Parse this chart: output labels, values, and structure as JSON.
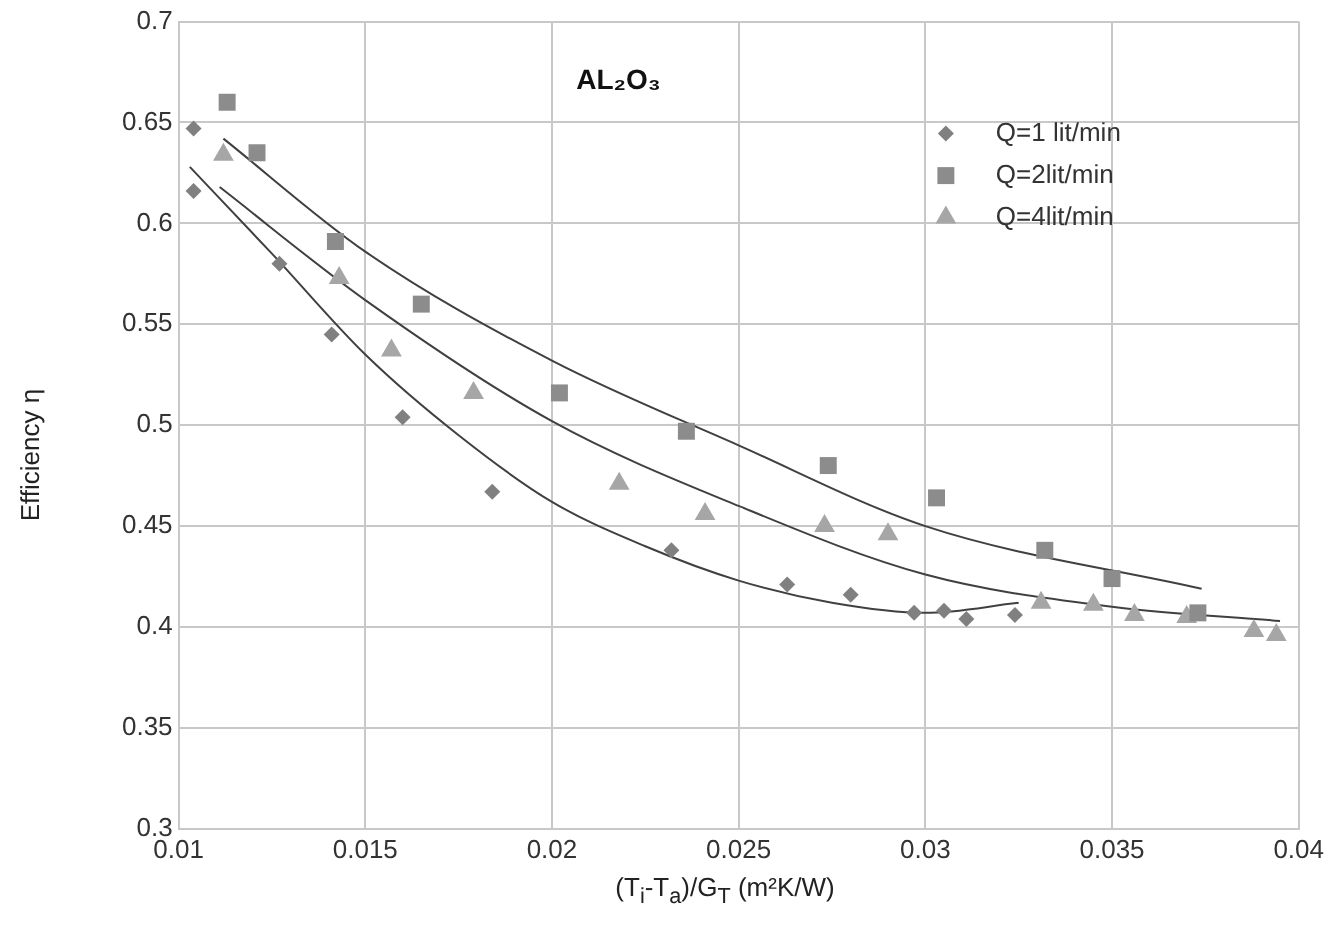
{
  "chart_data": {
    "type": "scatter",
    "annotations": [
      "AL₂O₃"
    ],
    "xlabel": "(T$_{i}$-T$_{a}$)/G$_{T}$    (m²K/W)",
    "ylabel": "Efficiency  η",
    "xlim": [
      0.01,
      0.04
    ],
    "xticks": [
      0.01,
      0.015,
      0.02,
      0.025,
      0.03,
      0.035,
      0.04
    ],
    "ylim": [
      0.3,
      0.7
    ],
    "yticks": [
      0.3,
      0.35,
      0.4,
      0.45,
      0.5,
      0.55,
      0.6,
      0.65,
      0.7
    ],
    "grid": true,
    "legend": "top right",
    "series": [
      {
        "name": "Q=1 lit/min",
        "marker": "diamond",
        "color": "#808080",
        "x": [
          0.0104,
          0.0104,
          0.0127,
          0.0141,
          0.016,
          0.0184,
          0.0232,
          0.0263,
          0.028,
          0.0297,
          0.0305,
          0.0311,
          0.0324
        ],
        "values": [
          0.647,
          0.616,
          0.58,
          0.545,
          0.504,
          0.467,
          0.438,
          0.421,
          0.416,
          0.407,
          0.408,
          0.404,
          0.406
        ]
      },
      {
        "name": "Q=2lit/min",
        "marker": "square",
        "color": "#8c8c8c",
        "x": [
          0.0113,
          0.0121,
          0.0142,
          0.0165,
          0.0202,
          0.0236,
          0.0274,
          0.0303,
          0.0332,
          0.035,
          0.0373
        ],
        "values": [
          0.66,
          0.635,
          0.591,
          0.56,
          0.516,
          0.497,
          0.48,
          0.464,
          0.438,
          0.424,
          0.407
        ]
      },
      {
        "name": "Q=4lit/min",
        "marker": "triangle",
        "color": "#a6a6a6",
        "x": [
          0.0112,
          0.0143,
          0.0157,
          0.0179,
          0.0218,
          0.0241,
          0.0273,
          0.029,
          0.0331,
          0.0345,
          0.0356,
          0.037,
          0.0388,
          0.0394
        ],
        "values": [
          0.634,
          0.573,
          0.537,
          0.516,
          0.471,
          0.456,
          0.45,
          0.446,
          0.412,
          0.411,
          0.406,
          0.405,
          0.398,
          0.396
        ]
      },
      {
        "type": "line",
        "marker": "none",
        "color": "#404040",
        "x": [
          0.0103,
          0.0125,
          0.015,
          0.0175,
          0.02,
          0.0225,
          0.025,
          0.0275,
          0.03,
          0.0325
        ],
        "values": [
          0.628,
          0.585,
          0.535,
          0.495,
          0.462,
          0.44,
          0.423,
          0.412,
          0.407,
          0.412
        ]
      },
      {
        "type": "line",
        "marker": "none",
        "color": "#404040",
        "x": [
          0.0112,
          0.015,
          0.02,
          0.025,
          0.03,
          0.0374
        ],
        "values": [
          0.642,
          0.586,
          0.532,
          0.49,
          0.45,
          0.419
        ]
      },
      {
        "type": "line",
        "marker": "none",
        "color": "#404040",
        "x": [
          0.0111,
          0.015,
          0.02,
          0.025,
          0.03,
          0.035,
          0.0395
        ],
        "values": [
          0.618,
          0.562,
          0.502,
          0.46,
          0.426,
          0.41,
          0.403
        ]
      }
    ]
  }
}
